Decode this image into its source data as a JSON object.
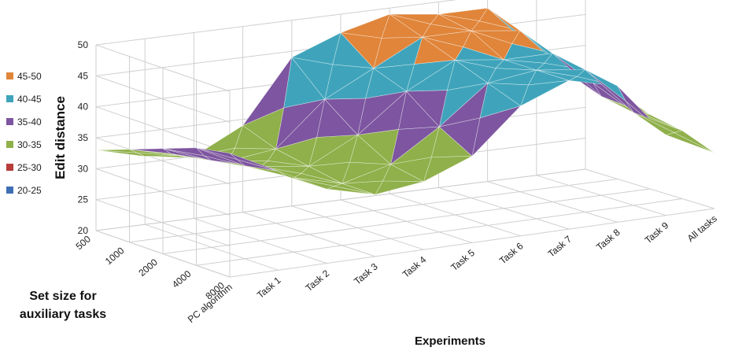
{
  "chart_data": {
    "type": "surface",
    "zlabel": "Edit distance",
    "xlabel": "Experiments",
    "ylabel_line1": "Set size for",
    "ylabel_line2": "auxiliary tasks",
    "zlim": [
      20,
      50
    ],
    "z_ticks": [
      "20",
      "25",
      "30",
      "35",
      "40",
      "45",
      "50"
    ],
    "experiments": [
      "PC algorithm",
      "Task 1",
      "Task 2",
      "Task 3",
      "Task 4",
      "Task 5",
      "Task 6",
      "Task 7",
      "Task 8",
      "Task 9",
      "All tasks"
    ],
    "set_sizes": [
      "500",
      "1000",
      "2000",
      "4000",
      "8000"
    ],
    "legend": [
      {
        "label": "45-50",
        "color": "#e0853a"
      },
      {
        "label": "40-45",
        "color": "#3fa4bb"
      },
      {
        "label": "35-40",
        "color": "#7d55a0"
      },
      {
        "label": "30-35",
        "color": "#8fb04a"
      },
      {
        "label": "25-30",
        "color": "#b83c3a"
      },
      {
        "label": "20-25",
        "color": "#3f6fb3"
      }
    ],
    "values": [
      [
        33,
        31,
        30,
        34,
        44,
        47,
        49,
        48,
        48,
        40,
        36
      ],
      [
        35,
        33,
        31,
        32,
        39,
        43,
        47,
        47,
        46,
        38,
        34
      ],
      [
        37,
        34,
        32,
        31,
        35,
        41,
        45,
        44,
        44,
        36,
        32
      ],
      [
        39,
        35,
        32,
        30,
        32,
        37,
        43,
        44,
        43,
        35,
        31
      ],
      [
        40,
        36,
        32,
        30,
        31,
        34,
        41,
        44,
        42,
        33,
        29
      ]
    ],
    "grid": true
  }
}
